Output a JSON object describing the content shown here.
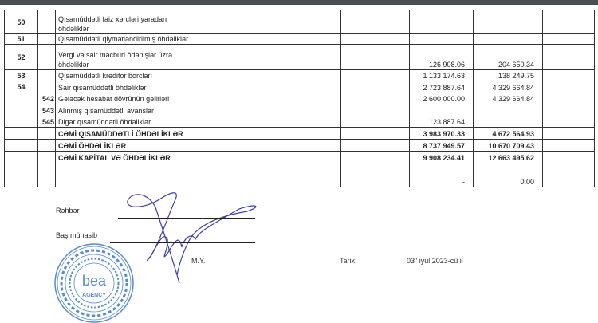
{
  "table": {
    "rows": [
      {
        "code": "50",
        "sub": "",
        "label_lines": [
          "Qısamüddətli faiz xərcləri yaradan",
          "öhdəliklər"
        ],
        "v1": "",
        "v2": "",
        "bold": false
      },
      {
        "code": "51",
        "sub": "",
        "label_lines": [
          "Qısamüddətli qiymətləndirilmiş öhdəliklər"
        ],
        "v1": "",
        "v2": "",
        "bold": false
      },
      {
        "code": "52",
        "sub": "",
        "label_lines": [
          "Vergi və sair məcburi ödənişlər üzrə",
          "öhdəliklər"
        ],
        "v1": "126 908.06",
        "v2": "204 650.34",
        "bold": false
      },
      {
        "code": "53",
        "sub": "",
        "label_lines": [
          "Qısamüddətli kreditor borcları"
        ],
        "v1": "1 133 174.63",
        "v2": "138 249.75",
        "bold": false
      },
      {
        "code": "54",
        "sub": "",
        "label_lines": [
          "Sair qısamüddətli öhdəliklər"
        ],
        "v1": "2 723 887.64",
        "v2": "4 329 664.84",
        "bold": false
      },
      {
        "code": "",
        "sub": "542",
        "label_lines": [
          "Gələcək hesabat dövrünün gəlirləri"
        ],
        "v1": "2 600 000.00",
        "v2": "4 329 664.84",
        "bold": false
      },
      {
        "code": "",
        "sub": "543",
        "label_lines": [
          "Alınmış qısamüddətli avanslar"
        ],
        "v1": "",
        "v2": "",
        "bold": false
      },
      {
        "code": "",
        "sub": "545",
        "label_lines": [
          "Digər qısamüddətli öhdəliklər"
        ],
        "v1": "123 887.64",
        "v2": "",
        "bold": false
      },
      {
        "code": "",
        "sub": "",
        "label_lines": [
          "CƏMİ QISAMÜDDƏTLİ ÖHDƏLİKLƏR"
        ],
        "v1": "3 983 970.33",
        "v2": "4 672 564.93",
        "bold": true
      },
      {
        "code": "",
        "sub": "",
        "label_lines": [
          "CƏMİ ÖHDƏLİKLƏR"
        ],
        "v1": "8 737 949.57",
        "v2": "10 670 709.43",
        "bold": true
      },
      {
        "code": "",
        "sub": "",
        "label_lines": [
          "CƏMİ KAPİTAL VƏ ÖHDƏLİKLƏR"
        ],
        "v1": "9 908 234.41",
        "v2": "12 663 495.62",
        "bold": true
      },
      {
        "code": "",
        "sub": "",
        "label_lines": [
          ""
        ],
        "v1": "",
        "v2": "",
        "bold": false
      },
      {
        "code": "",
        "sub": "",
        "label_lines": [
          ""
        ],
        "v1": "-",
        "v2": "0.00",
        "bold": false
      }
    ]
  },
  "signatures": {
    "director_label": "Rəhbər",
    "accountant_label": "Baş mühasib",
    "seal_label": "M.Y.",
    "date_label": "Tarix:",
    "date_value": "03\" iyul 2023-cü il"
  },
  "stamp": {
    "outer_text": "Azərbaycan Respublikası · Azerbaijan Republic",
    "inner_text": "Açıq Səhmdar Cəmiyyəti · Open Joint Stock Company",
    "logo_text": "bea",
    "logo_sub": "AGENCY",
    "color": "#3a78c8"
  },
  "signature_color": "#3b3fa8"
}
